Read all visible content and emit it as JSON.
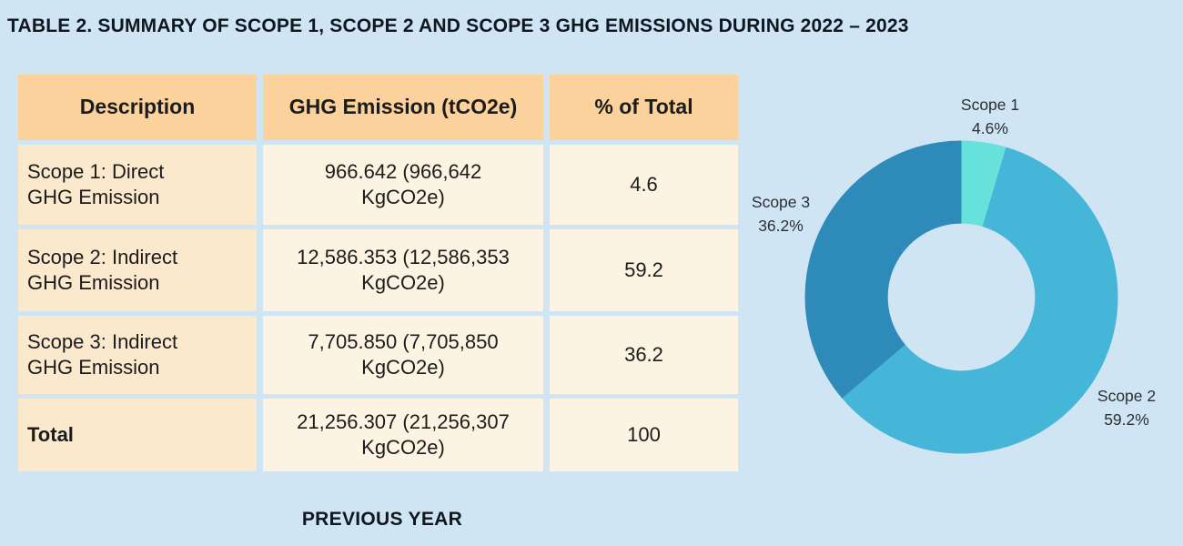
{
  "page": {
    "title": "TABLE 2. SUMMARY OF SCOPE 1, SCOPE 2 AND SCOPE 3 GHG EMISSIONS DURING 2022 – 2023",
    "footer_label": "PREVIOUS YEAR",
    "background_color": "#cfe5f4"
  },
  "table": {
    "headers": [
      "Description",
      "GHG Emission (tCO2e)",
      "% of Total"
    ],
    "rows": [
      {
        "description": "Scope 1: Direct\nGHG Emission",
        "emission": "966.642 (966,642\nKgCO2e)",
        "percent": "4.6"
      },
      {
        "description": "Scope 2: Indirect\nGHG Emission",
        "emission": "12,586.353 (12,586,353\nKgCO2e)",
        "percent": "59.2"
      },
      {
        "description": "Scope 3: Indirect\nGHG Emission",
        "emission": "7,705.850 (7,705,850\nKgCO2e)",
        "percent": "36.2"
      },
      {
        "description": "Total",
        "emission": "21,256.307 (21,256,307\nKgCO2e)",
        "percent": "100"
      }
    ],
    "colors": {
      "header_bg": "#fbd29b",
      "description_cell_bg": "#fbe9ce",
      "value_cell_bg": "#fdf3e2"
    }
  },
  "chart_data": {
    "type": "pie",
    "donut": true,
    "title": "",
    "categories": [
      "Scope 1",
      "Scope 2",
      "Scope 3"
    ],
    "values": [
      4.6,
      59.2,
      36.2
    ],
    "labels": [
      "4.6%",
      "59.2%",
      "36.2%"
    ],
    "colors": [
      "#66e2da",
      "#45b6d8",
      "#2e8ab9"
    ],
    "start_angle_deg": 0,
    "direction": "clockwise",
    "inner_radius_ratio": 0.47,
    "legend_position": "none",
    "label_style": "outside"
  }
}
